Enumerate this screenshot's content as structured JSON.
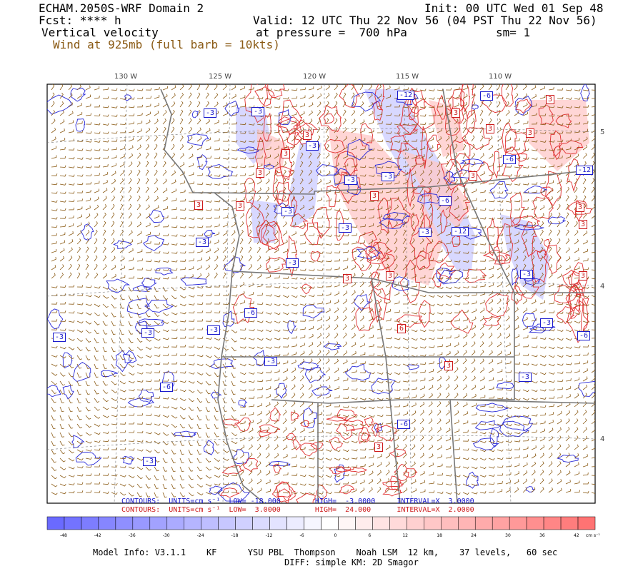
{
  "header": {
    "title": "ECHAM.2050S-WRF Domain 2",
    "fcst": "Fcst: **** h",
    "field": "Vertical velocity",
    "wind": "Wind at 925mb (full barb = 10kts)",
    "init": "Init: 00 UTC Wed 01 Sep 48",
    "valid": "Valid: 12 UTC Thu 22 Nov 56 (04 PST Thu 22 Nov 56)",
    "pressure": "at pressure =  700 hPa",
    "sm": "sm= 1"
  },
  "longitudes": [
    "130 W",
    "125 W",
    "120 W",
    "115 W",
    "110 W"
  ],
  "latitudes": [
    "5",
    "4",
    "4"
  ],
  "contour_lines": {
    "negative": "CONTOURS:  UNITS=cm s⁻¹  LOW= -18.000        HIGH=  -3.0000     INTERVAL=X  3.0000",
    "positive": "CONTOURS:  UNITS=cm s⁻¹  LOW=  3.0000        HIGH=  24.000      INTERVAL=X  2.0000"
  },
  "colorbar": {
    "labels": [
      "-48",
      "-42",
      "-36",
      "-30",
      "-24",
      "-18",
      "-12",
      "-6",
      "0",
      "6",
      "12",
      "18",
      "24",
      "30",
      "36",
      "42"
    ],
    "units": "cm s⁻¹",
    "neg_color": "#6a6aff",
    "pos_color": "#ff6a6a"
  },
  "contour_labels": {
    "negative": [
      "-12",
      "-6",
      "-3",
      "-3",
      "-3",
      "-3",
      "-3",
      "-6",
      "-6",
      "-12",
      "-12",
      "-3",
      "-3",
      "-3",
      "-3",
      "-3",
      "-3",
      "-3",
      "-6",
      "-3",
      "-3",
      "-3",
      "-6",
      "-3",
      "-6",
      "-3",
      "-6",
      "-3"
    ],
    "positive": [
      "3",
      "3",
      "3",
      "3",
      "3",
      "3",
      "3",
      "3",
      "3",
      "3",
      "3",
      "3",
      "3",
      "3",
      "3",
      "6",
      "3",
      "3",
      "3"
    ]
  },
  "footer": {
    "model": "Model Info: V3.1.1    KF      YSU PBL  Thompson    Noah LSM  12 km,    37 levels,   60 sec",
    "diff": "DIFF: simple KM: 2D Smagor"
  }
}
